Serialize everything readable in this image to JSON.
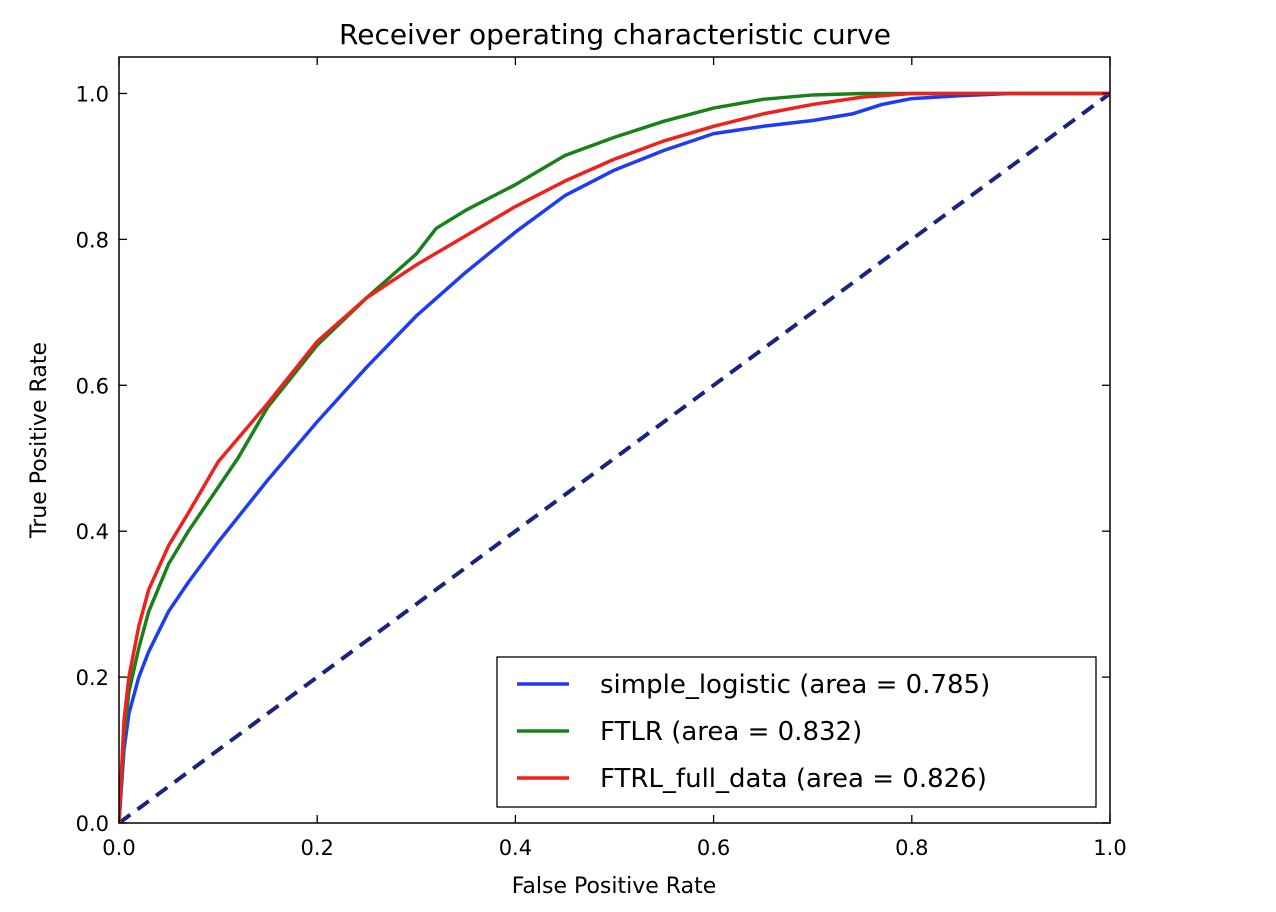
{
  "chart_data": {
    "type": "line",
    "title": "Receiver operating characteristic curve",
    "xlabel": "False Positive Rate",
    "ylabel": "True Positive Rate",
    "xlim": [
      0.0,
      1.0
    ],
    "ylim": [
      0.0,
      1.05
    ],
    "xticks": [
      "0.0",
      "0.2",
      "0.4",
      "0.6",
      "0.8",
      "1.0"
    ],
    "yticks": [
      "0.0",
      "0.2",
      "0.4",
      "0.6",
      "0.8",
      "1.0"
    ],
    "grid": false,
    "legend_position": "lower-right",
    "series": [
      {
        "name": "simple_logistic (area = 0.785)",
        "color": "#1f3cf5",
        "style": "solid",
        "x": [
          0.0,
          0.005,
          0.01,
          0.02,
          0.03,
          0.05,
          0.07,
          0.1,
          0.15,
          0.2,
          0.25,
          0.3,
          0.35,
          0.4,
          0.45,
          0.5,
          0.55,
          0.6,
          0.65,
          0.7,
          0.74,
          0.77,
          0.8,
          0.85,
          0.9,
          0.95,
          1.0
        ],
        "y": [
          0.0,
          0.1,
          0.15,
          0.2,
          0.235,
          0.29,
          0.33,
          0.385,
          0.47,
          0.55,
          0.625,
          0.695,
          0.755,
          0.81,
          0.86,
          0.895,
          0.922,
          0.945,
          0.955,
          0.963,
          0.972,
          0.985,
          0.993,
          0.997,
          1.0,
          1.0,
          1.0
        ]
      },
      {
        "name": "FTLR (area = 0.832)",
        "color": "#1a801a",
        "style": "solid",
        "x": [
          0.0,
          0.005,
          0.01,
          0.02,
          0.03,
          0.05,
          0.07,
          0.1,
          0.12,
          0.15,
          0.2,
          0.25,
          0.3,
          0.32,
          0.35,
          0.4,
          0.45,
          0.5,
          0.55,
          0.6,
          0.65,
          0.7,
          0.75,
          0.8,
          0.9,
          1.0
        ],
        "y": [
          0.0,
          0.12,
          0.18,
          0.24,
          0.29,
          0.355,
          0.4,
          0.46,
          0.5,
          0.57,
          0.655,
          0.72,
          0.78,
          0.815,
          0.84,
          0.875,
          0.915,
          0.94,
          0.962,
          0.98,
          0.992,
          0.998,
          1.0,
          1.0,
          1.0,
          1.0
        ]
      },
      {
        "name": "FTRL_full_data (area = 0.826)",
        "color": "#f0211d",
        "style": "solid",
        "x": [
          0.0,
          0.005,
          0.01,
          0.02,
          0.03,
          0.05,
          0.07,
          0.1,
          0.15,
          0.2,
          0.25,
          0.3,
          0.35,
          0.4,
          0.45,
          0.5,
          0.55,
          0.6,
          0.65,
          0.7,
          0.75,
          0.8,
          0.9,
          1.0
        ],
        "y": [
          0.0,
          0.14,
          0.2,
          0.27,
          0.32,
          0.38,
          0.425,
          0.495,
          0.575,
          0.66,
          0.72,
          0.765,
          0.805,
          0.845,
          0.88,
          0.91,
          0.935,
          0.955,
          0.972,
          0.985,
          0.995,
          1.0,
          1.0,
          1.0
        ]
      },
      {
        "name": "",
        "color": "#1a237e",
        "style": "dashed",
        "x": [
          0.0,
          1.0
        ],
        "y": [
          0.0,
          1.0
        ]
      }
    ]
  }
}
